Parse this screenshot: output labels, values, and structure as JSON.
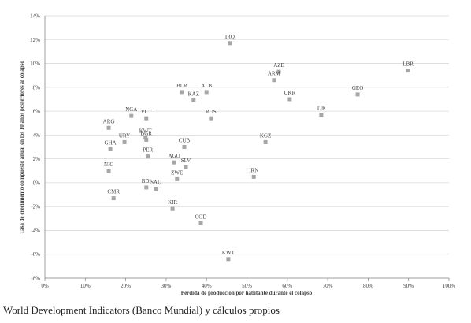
{
  "chart_data": {
    "type": "scatter",
    "x_label": "Pérdida de producción por habitante  durante  el colapso",
    "y_label": "Tasa de crecimiento compuesto anual  en  los 10 años posteriores  al colapso",
    "color": "#a6a6a6",
    "grid": true,
    "xlim": [
      0,
      100
    ],
    "xticks": [
      {
        "value": 0,
        "label": "0%"
      },
      {
        "value": 10,
        "label": "10%"
      },
      {
        "value": 20,
        "label": "20%"
      },
      {
        "value": 30,
        "label": "30%"
      },
      {
        "value": 40,
        "label": "40%"
      },
      {
        "value": 50,
        "label": "50%"
      },
      {
        "value": 60,
        "label": "60%"
      },
      {
        "value": 70,
        "label": "70%"
      },
      {
        "value": 80,
        "label": "80%"
      },
      {
        "value": 90,
        "label": "90%"
      },
      {
        "value": 100,
        "label": "100%"
      }
    ],
    "ylim": [
      -8,
      14
    ],
    "yticks": [
      {
        "value": -8,
        "label": "-8%"
      },
      {
        "value": -6,
        "label": "-6%"
      },
      {
        "value": -4,
        "label": "-4%"
      },
      {
        "value": -2,
        "label": "-2%"
      },
      {
        "value": 0,
        "label": "0%"
      },
      {
        "value": 2,
        "label": "2%"
      },
      {
        "value": 4,
        "label": "4%"
      },
      {
        "value": 6,
        "label": "6%"
      },
      {
        "value": 8,
        "label": "8%"
      },
      {
        "value": 10,
        "label": "10%"
      },
      {
        "value": 12,
        "label": "12%"
      },
      {
        "value": 14,
        "label": "14%"
      }
    ],
    "point_labels": [
      "IRQ",
      "AZE",
      "LBR",
      "ARM",
      "BLR",
      "ALB",
      "KAZ",
      "UKR",
      "GEO",
      "NGA",
      "VCT",
      "TJK",
      "RUS",
      "ARG",
      "KGZ",
      "KWT",
      "CUB",
      "URY",
      "BGR",
      "GHA",
      "PER",
      "AGO",
      "SLV",
      "NIC",
      "ZWE",
      "IRN",
      "BDI",
      "SAU",
      "CMR",
      "KIR",
      "COD",
      "KWT"
    ],
    "x": [
      45.8,
      57.9,
      89.9,
      56.7,
      33.9,
      40.0,
      36.8,
      60.6,
      77.4,
      21.4,
      25.1,
      68.4,
      41.1,
      15.8,
      54.6,
      24.9,
      34.5,
      19.7,
      25.1,
      16.2,
      25.5,
      32.0,
      34.9,
      15.8,
      32.7,
      51.7,
      25.1,
      27.5,
      17.0,
      31.6,
      38.6,
      45.4
    ],
    "values": [
      11.7,
      9.3,
      9.4,
      8.6,
      7.6,
      7.6,
      6.9,
      7.0,
      7.4,
      5.6,
      5.4,
      5.7,
      5.4,
      4.6,
      3.4,
      3.8,
      3.0,
      3.4,
      3.6,
      2.8,
      2.2,
      1.7,
      1.3,
      1.0,
      0.3,
      0.5,
      -0.4,
      -0.5,
      -1.3,
      -2.2,
      -3.4,
      -6.4
    ]
  },
  "source": "World Development Indicators (Banco Mundial) y cálculos propios"
}
